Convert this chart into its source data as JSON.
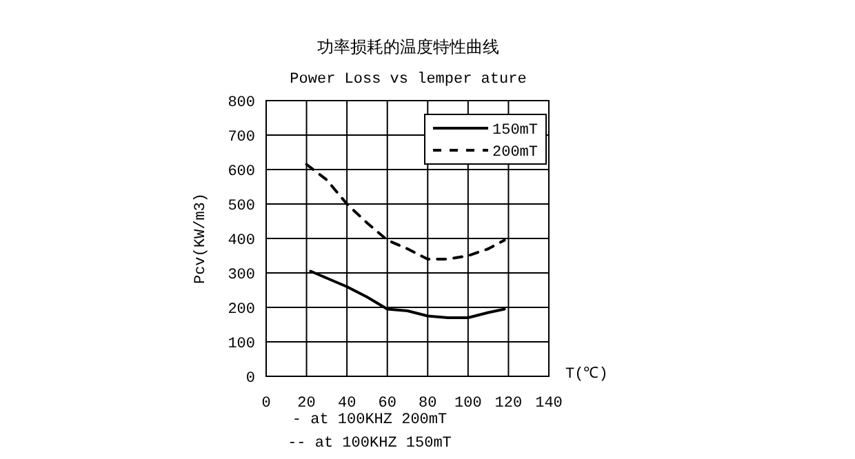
{
  "chart_data": {
    "type": "line",
    "title": "功率损耗的温度特性曲线",
    "subtitle": "Power Loss vs lemper ature",
    "xlabel": "T(℃)",
    "ylabel": "Pcv(KW/m3)",
    "annotations": [
      "- at 100KHZ 200mT",
      "-- at 100KHZ 150mT"
    ],
    "xlim": [
      0,
      140
    ],
    "xticks": [
      0,
      20,
      40,
      60,
      80,
      100,
      120,
      140
    ],
    "ylim": [
      0,
      800
    ],
    "yticks": [
      0,
      100,
      200,
      300,
      400,
      500,
      600,
      700,
      800
    ],
    "grid": true,
    "legend": "top right",
    "marker": "none",
    "series": [
      {
        "name": "150mT",
        "color": "#000000",
        "line_style": "solid",
        "x": [
          22,
          30,
          40,
          50,
          60,
          70,
          80,
          90,
          100,
          110,
          118
        ],
        "values": [
          305,
          285,
          260,
          230,
          195,
          190,
          175,
          170,
          170,
          185,
          195
        ]
      },
      {
        "name": "200mT",
        "color": "#000000",
        "line_style": "dashed",
        "x": [
          20,
          30,
          40,
          50,
          60,
          70,
          80,
          90,
          100,
          110,
          118
        ],
        "values": [
          615,
          570,
          500,
          445,
          395,
          370,
          340,
          340,
          350,
          370,
          395
        ]
      }
    ]
  }
}
